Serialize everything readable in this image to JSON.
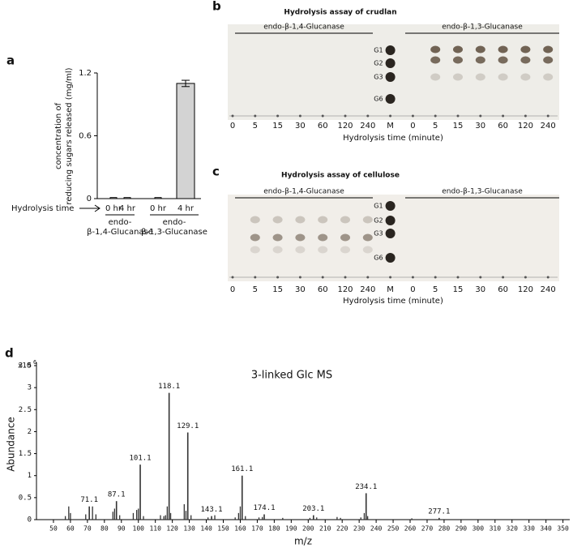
{
  "chart_data": [
    {
      "type": "bar",
      "panel": "a",
      "y_label_lines": [
        "concentration of",
        "reducing sugars released (mg/ml)"
      ],
      "row_label": "Hydrolysis time",
      "categories": [
        "0 hr",
        "4 hr",
        "0 hr",
        "4 hr"
      ],
      "groups": [
        {
          "lines": [
            "endo-",
            "β-1,4-Glucanase"
          ]
        },
        {
          "lines": [
            "endo-",
            "β-1,3-Glucanase"
          ]
        }
      ],
      "values": [
        0.01,
        0.01,
        0.01,
        1.1
      ],
      "errors": [
        0,
        0,
        0,
        0.03
      ],
      "colors": [
        "#ffffff",
        "#ffffff",
        "#ffffff",
        "#d3d3d3"
      ],
      "ylim": [
        0,
        1.2
      ],
      "yticks": [
        0,
        0.6,
        1.2
      ]
    },
    {
      "type": "spectrum",
      "panel": "d",
      "title": "3-linked Glc MS",
      "y_multiplier": {
        "base": "x10",
        "exponent": "6"
      },
      "x_label": "m/z",
      "y_label": "Abundance",
      "color": "#333333",
      "x": [
        71.1,
        87.1,
        101.1,
        118.1,
        129.1,
        143.1,
        161.1,
        174.1,
        203.1,
        234.1,
        277.1
      ],
      "values": [
        0.3,
        0.42,
        1.25,
        2.88,
        1.98,
        0.08,
        1.0,
        0.12,
        0.1,
        0.6,
        0.04
      ],
      "minor_x": [
        57,
        59,
        60,
        69,
        73,
        75,
        85,
        86,
        89,
        97,
        99,
        100,
        103,
        113,
        115,
        116,
        117,
        119,
        127,
        128,
        131,
        141,
        145,
        157,
        159,
        160,
        163,
        171,
        173,
        185,
        201,
        205,
        217,
        219,
        231,
        233,
        235,
        261
      ],
      "minor_values": [
        0.08,
        0.3,
        0.15,
        0.12,
        0.3,
        0.12,
        0.18,
        0.25,
        0.1,
        0.15,
        0.22,
        0.25,
        0.08,
        0.1,
        0.08,
        0.1,
        0.3,
        0.15,
        0.35,
        0.2,
        0.1,
        0.05,
        0.1,
        0.05,
        0.15,
        0.3,
        0.08,
        0.05,
        0.06,
        0.04,
        0.04,
        0.05,
        0.06,
        0.04,
        0.05,
        0.15,
        0.08,
        0.03
      ],
      "xlim": [
        40,
        354
      ],
      "ylim": [
        0,
        3.5
      ],
      "xticks": [
        50,
        60,
        70,
        80,
        90,
        100,
        110,
        120,
        130,
        140,
        150,
        160,
        170,
        180,
        190,
        200,
        210,
        220,
        230,
        240,
        250,
        260,
        270,
        280,
        290,
        300,
        310,
        320,
        330,
        340,
        350
      ],
      "yticks": [
        0,
        0.5,
        1,
        1.5,
        2,
        2.5,
        3,
        3.5
      ]
    }
  ],
  "tlc_panels": [
    {
      "panel": "b",
      "title": "Hydrolysis assay of crudlan",
      "enzymes": [
        "endo-β-1,4-Glucanase",
        "endo-β-1,3-Glucanase"
      ],
      "lanes": [
        "0",
        "5",
        "15",
        "30",
        "60",
        "120",
        "240",
        "M",
        "0",
        "5",
        "15",
        "30",
        "60",
        "120",
        "240"
      ],
      "markers": [
        "G1",
        "G2",
        "G3",
        "G6"
      ],
      "axis_title": "Hydrolysis time (minute)"
    },
    {
      "panel": "c",
      "title": "Hydrolysis assay of cellulose",
      "enzymes": [
        "endo-β-1,4-Glucanase",
        "endo-β-1,3-Glucanase"
      ],
      "lanes": [
        "0",
        "5",
        "15",
        "30",
        "60",
        "120",
        "240",
        "M",
        "0",
        "5",
        "15",
        "30",
        "60",
        "120",
        "240"
      ],
      "markers": [
        "G1",
        "G2",
        "G3",
        "G6"
      ],
      "axis_title": "Hydrolysis time (minute)"
    }
  ]
}
